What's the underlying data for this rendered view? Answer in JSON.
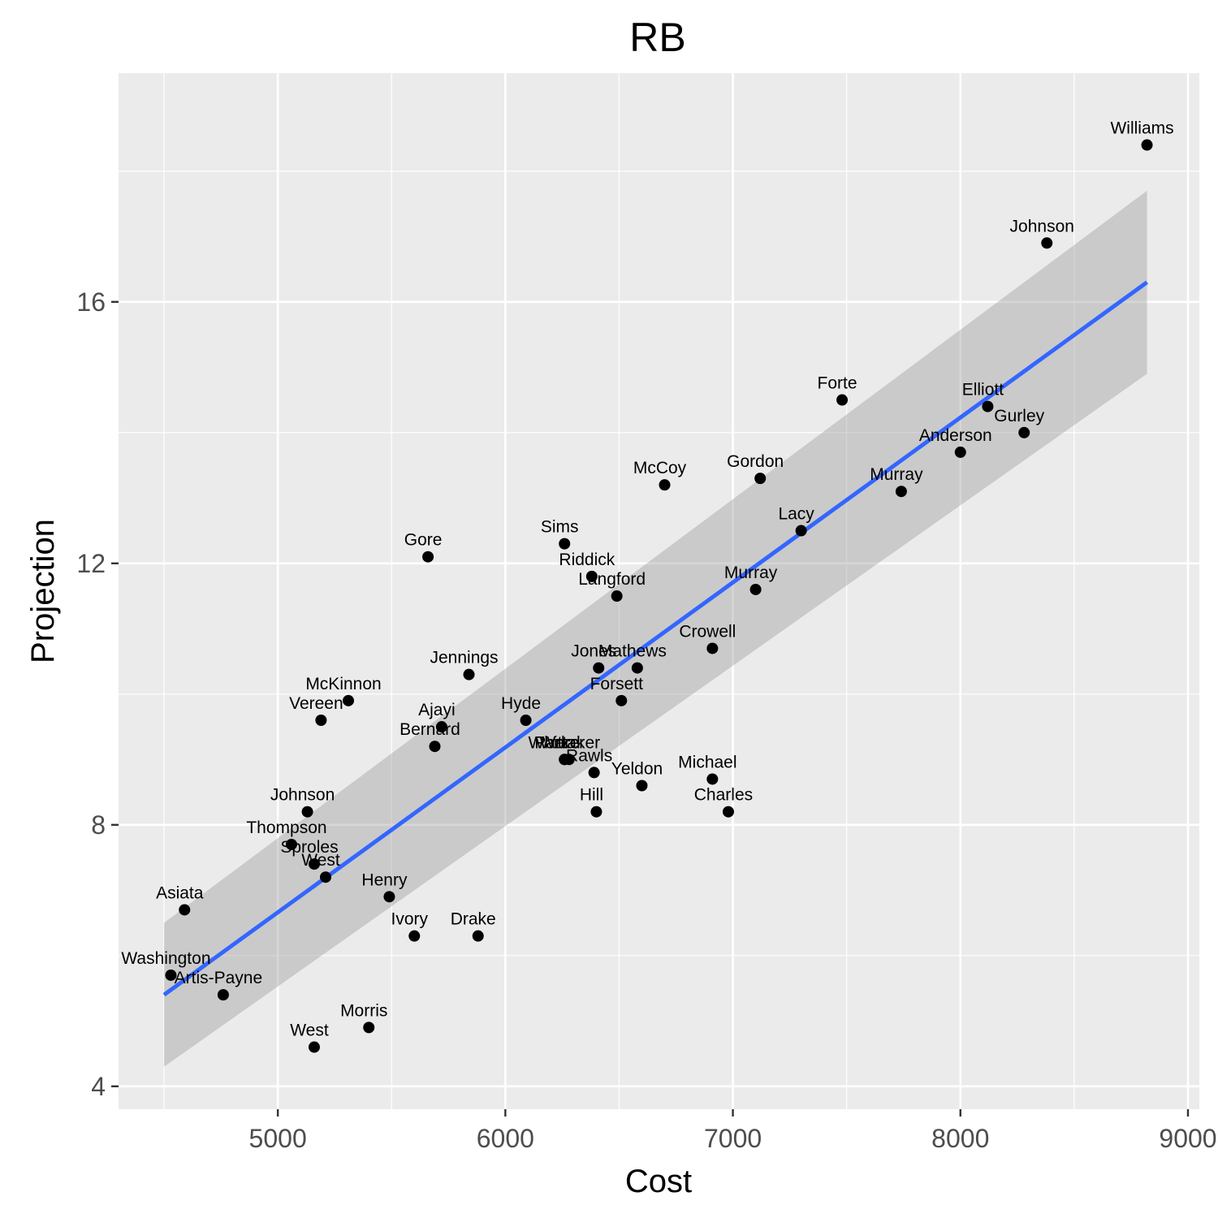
{
  "chart_data": {
    "type": "scatter",
    "title": "RB",
    "xlabel": "Cost",
    "ylabel": "Projection",
    "xlim": [
      4300,
      9050
    ],
    "ylim": [
      3.65,
      19.5
    ],
    "x_ticks": [
      5000,
      6000,
      7000,
      8000,
      9000
    ],
    "x_tick_labels": [
      "5000",
      "6000",
      "7000",
      "8000",
      "9000"
    ],
    "y_ticks": [
      4,
      8,
      12,
      16
    ],
    "y_tick_labels": [
      "4",
      "8",
      "12",
      "16"
    ],
    "grid": true,
    "legend": "none",
    "colors": {
      "panel_background": "#ebebeb",
      "grid": "#ffffff",
      "points": "#000000",
      "trend_line": "#3366ff",
      "confidence_band": "#999999"
    },
    "points": [
      {
        "label": "Williams",
        "x": 8820,
        "y": 18.4
      },
      {
        "label": "Johnson",
        "x": 8380,
        "y": 16.9
      },
      {
        "label": "Forte",
        "x": 7480,
        "y": 14.5
      },
      {
        "label": "Elliott",
        "x": 8120,
        "y": 14.4
      },
      {
        "label": "Gurley",
        "x": 8280,
        "y": 14.0
      },
      {
        "label": "Anderson",
        "x": 8000,
        "y": 13.7
      },
      {
        "label": "McCoy",
        "x": 6700,
        "y": 13.2
      },
      {
        "label": "Gordon",
        "x": 7120,
        "y": 13.3
      },
      {
        "label": "Murray",
        "x": 7740,
        "y": 13.1
      },
      {
        "label": "Lacy",
        "x": 7300,
        "y": 12.5
      },
      {
        "label": "Sims",
        "x": 6260,
        "y": 12.3
      },
      {
        "label": "Gore",
        "x": 5660,
        "y": 12.1
      },
      {
        "label": "Riddick",
        "x": 6380,
        "y": 11.8
      },
      {
        "label": "Langford",
        "x": 6490,
        "y": 11.5
      },
      {
        "label": "Murray",
        "x": 7100,
        "y": 11.6
      },
      {
        "label": "Crowell",
        "x": 6910,
        "y": 10.7
      },
      {
        "label": "Jones",
        "x": 6410,
        "y": 10.4
      },
      {
        "label": "Mathews",
        "x": 6580,
        "y": 10.4
      },
      {
        "label": "Jennings",
        "x": 5840,
        "y": 10.3
      },
      {
        "label": "Forsett",
        "x": 6510,
        "y": 9.9
      },
      {
        "label": "McKinnon",
        "x": 5310,
        "y": 9.9
      },
      {
        "label": "Vereen",
        "x": 5190,
        "y": 9.6
      },
      {
        "label": "Hyde",
        "x": 6090,
        "y": 9.6
      },
      {
        "label": "Ajayi",
        "x": 5720,
        "y": 9.5
      },
      {
        "label": "Bernard",
        "x": 5690,
        "y": 9.2
      },
      {
        "label": "Ware",
        "x": 6260,
        "y": 9.0
      },
      {
        "label": "Whittaker",
        "x": 6280,
        "y": 9.0
      },
      {
        "label": "Parker",
        "x": 6260,
        "y": 9.0
      },
      {
        "label": "Rawls",
        "x": 6390,
        "y": 8.8
      },
      {
        "label": "Michael",
        "x": 6910,
        "y": 8.7
      },
      {
        "label": "Yeldon",
        "x": 6600,
        "y": 8.6
      },
      {
        "label": "Hill",
        "x": 6400,
        "y": 8.2
      },
      {
        "label": "Charles",
        "x": 6980,
        "y": 8.2
      },
      {
        "label": "Johnson",
        "x": 5130,
        "y": 8.2
      },
      {
        "label": "Thompson",
        "x": 5060,
        "y": 7.7
      },
      {
        "label": "Sproles",
        "x": 5160,
        "y": 7.4
      },
      {
        "label": "West",
        "x": 5210,
        "y": 7.2
      },
      {
        "label": "Henry",
        "x": 5490,
        "y": 6.9
      },
      {
        "label": "Asiata",
        "x": 4590,
        "y": 6.7
      },
      {
        "label": "Ivory",
        "x": 5600,
        "y": 6.3
      },
      {
        "label": "Drake",
        "x": 5880,
        "y": 6.3
      },
      {
        "label": "Washington",
        "x": 4530,
        "y": 5.7
      },
      {
        "label": "Artis-Payne",
        "x": 4760,
        "y": 5.4
      },
      {
        "label": "Morris",
        "x": 5400,
        "y": 4.9
      },
      {
        "label": "West",
        "x": 5160,
        "y": 4.6
      }
    ],
    "trend": {
      "method": "linear fit with confidence band",
      "x_range": [
        4500,
        8820
      ],
      "fit_y": [
        5.4,
        16.3
      ],
      "band_lower": [
        4.3,
        14.9
      ],
      "band_upper": [
        6.5,
        17.7
      ]
    }
  }
}
